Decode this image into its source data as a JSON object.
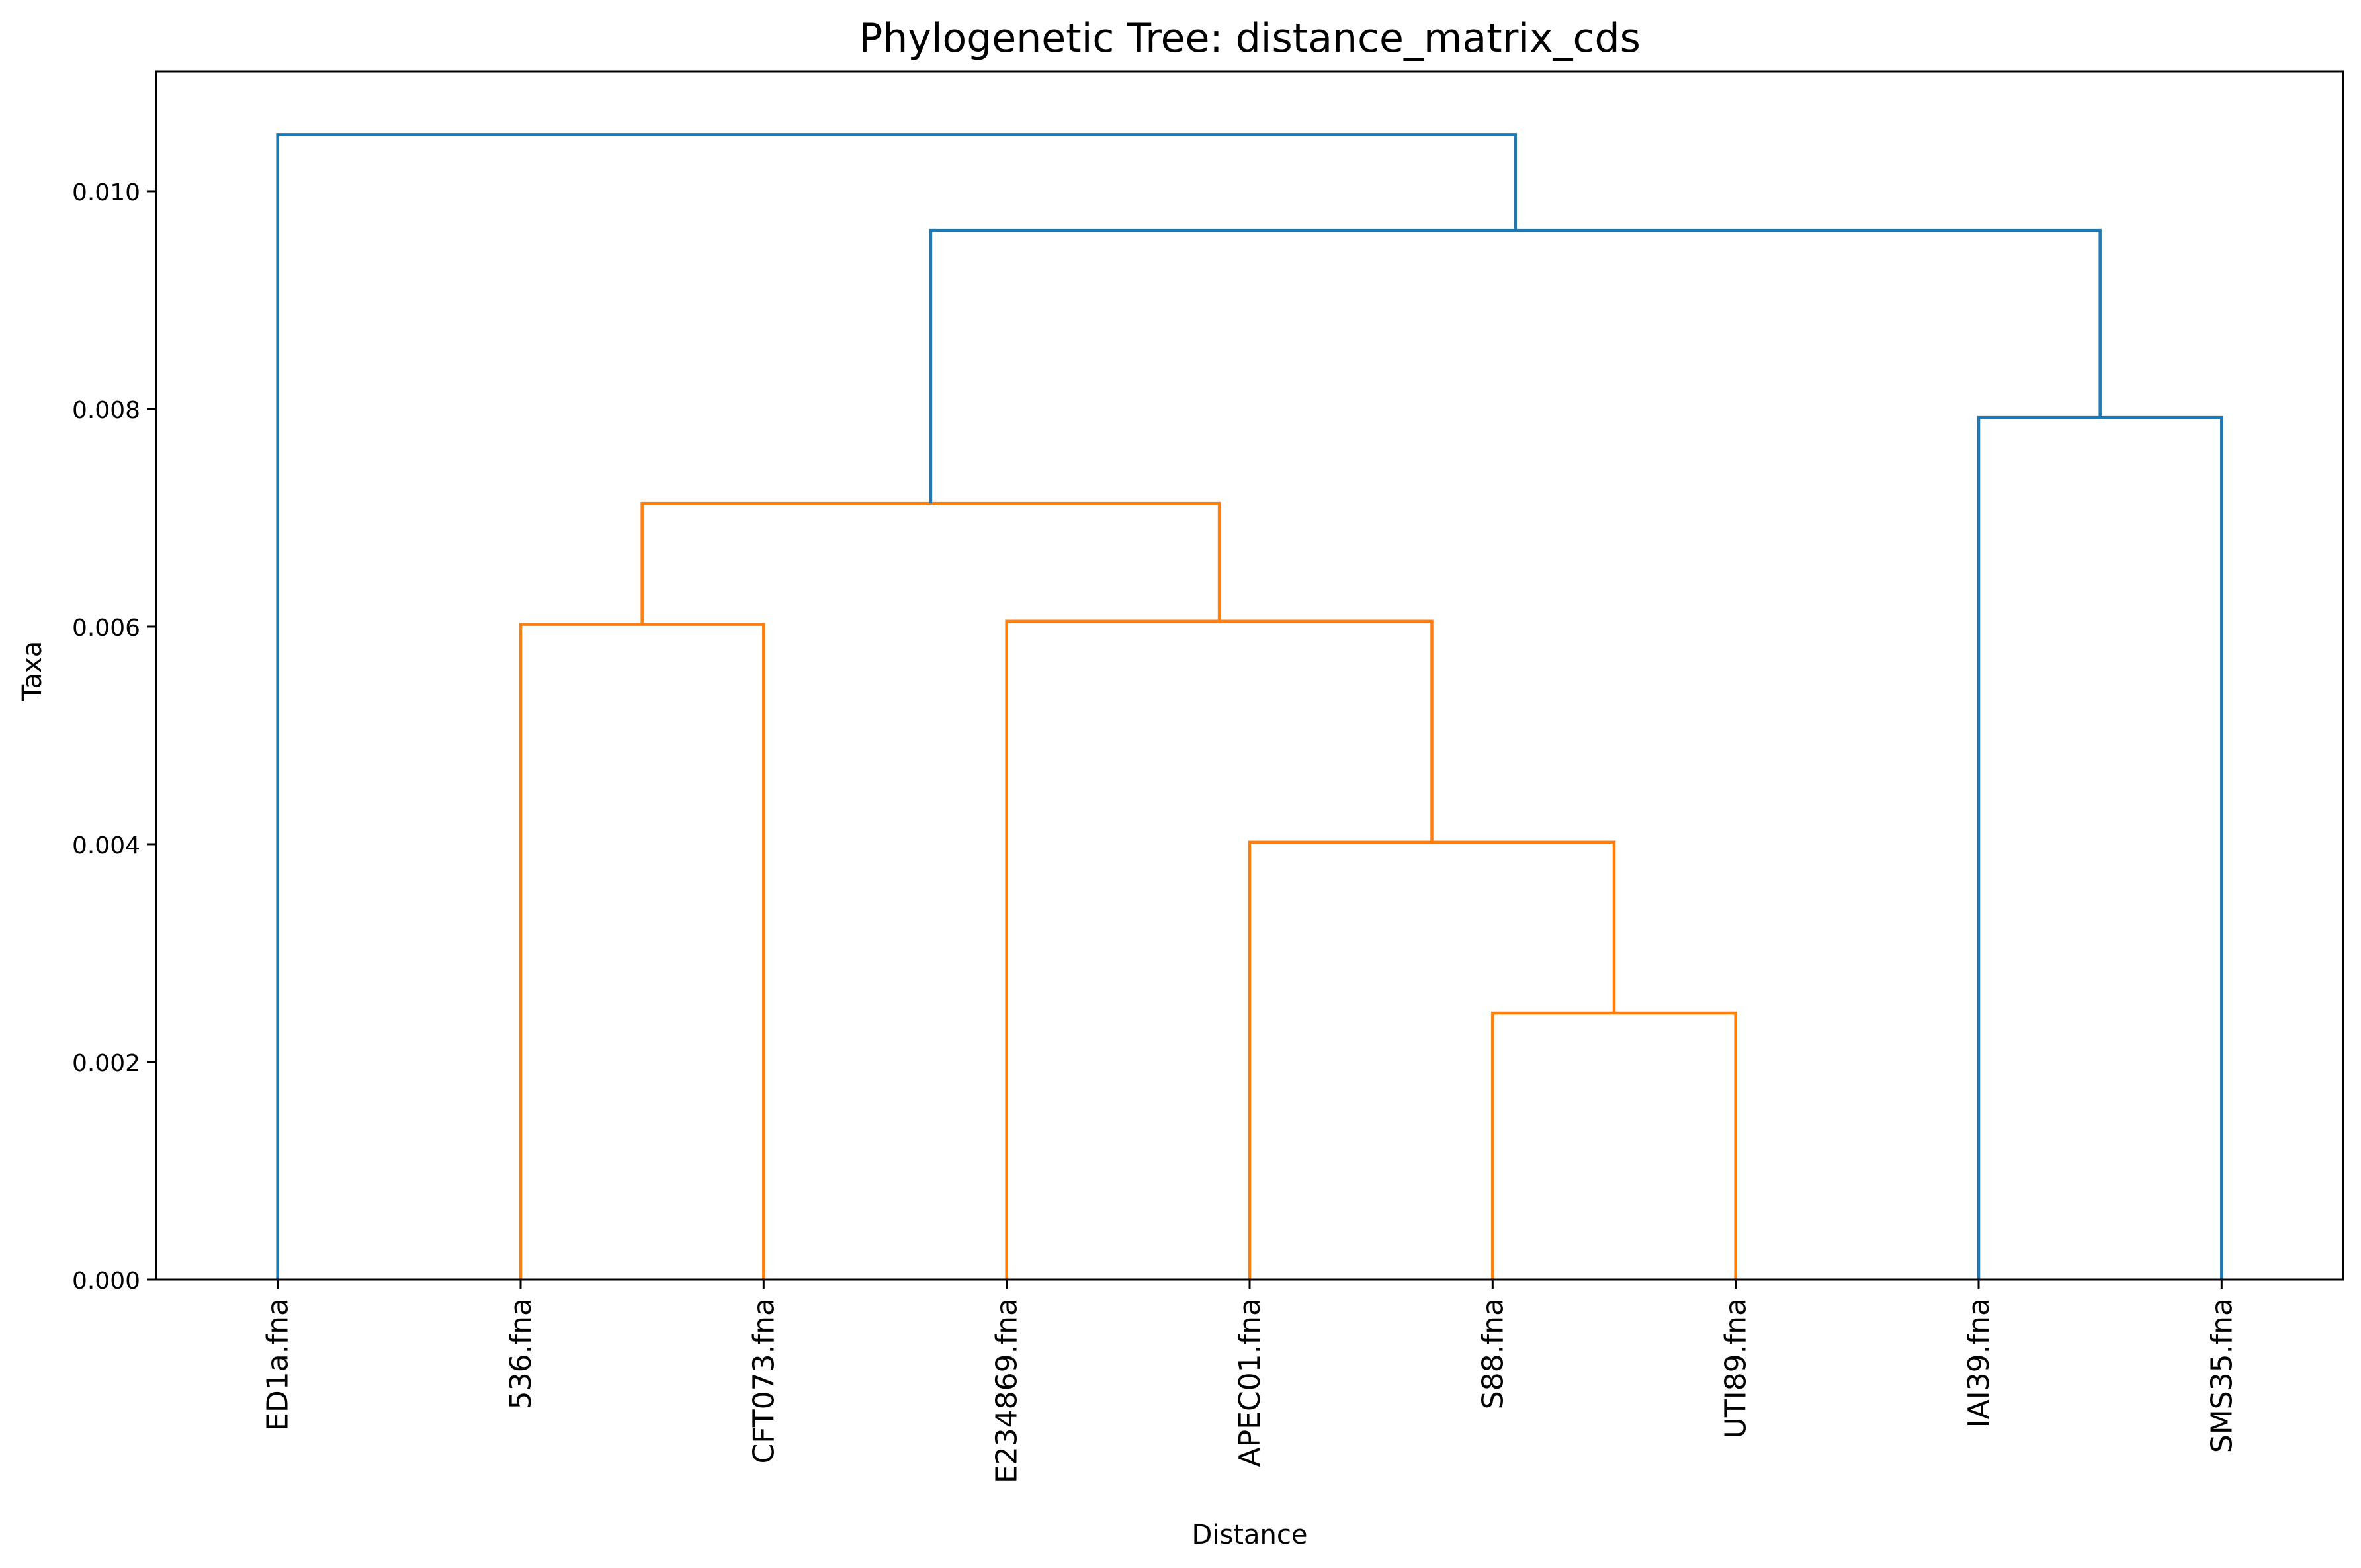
{
  "chart_data": {
    "type": "dendrogram",
    "title": "Phylogenetic Tree: distance_matrix_cds",
    "xlabel": "Distance",
    "ylabel": "Taxa",
    "ylim": [
      0,
      0.0111
    ],
    "yticks": [
      "0.000",
      "0.002",
      "0.004",
      "0.006",
      "0.008",
      "0.010"
    ],
    "yticks_values": [
      0,
      0.002,
      0.004,
      0.006,
      0.008,
      0.01
    ],
    "leaves": [
      "ED1a.fna",
      "536.fna",
      "CFT073.fna",
      "E234869.fna",
      "APEC01.fna",
      "S88.fna",
      "UTI89.fna",
      "IAI39.fna",
      "SMS35.fna"
    ],
    "grid": false,
    "colors": {
      "cluster_1": "#ff7f0e",
      "above_threshold": "#1f77b4"
    },
    "merges": [
      {
        "left": "S88.fna",
        "right": "UTI89.fna",
        "height": 0.00245,
        "color": "#ff7f0e"
      },
      {
        "left": "APEC01.fna",
        "right": "S88.fna + UTI89.fna",
        "height": 0.00402,
        "color": "#ff7f0e"
      },
      {
        "left": "536.fna",
        "right": "CFT073.fna",
        "height": 0.00602,
        "color": "#ff7f0e"
      },
      {
        "left": "E234869.fna",
        "right": "APEC01.fna + S88.fna + UTI89.fna",
        "height": 0.00605,
        "color": "#ff7f0e"
      },
      {
        "left": "536.fna + CFT073.fna",
        "right": "E234869.fna + APEC01.fna + S88.fna + UTI89.fna",
        "height": 0.00713,
        "color": "#ff7f0e"
      },
      {
        "left": "IAI39.fna",
        "right": "SMS35.fna",
        "height": 0.00792,
        "color": "#1f77b4"
      },
      {
        "left": "536.fna ... UTI89.fna",
        "right": "IAI39.fna + SMS35.fna",
        "height": 0.00964,
        "color": "#1f77b4"
      },
      {
        "left": "ED1a.fna",
        "right": "536.fna ... SMS35.fna",
        "height": 0.01052,
        "color": "#1f77b4"
      }
    ]
  }
}
